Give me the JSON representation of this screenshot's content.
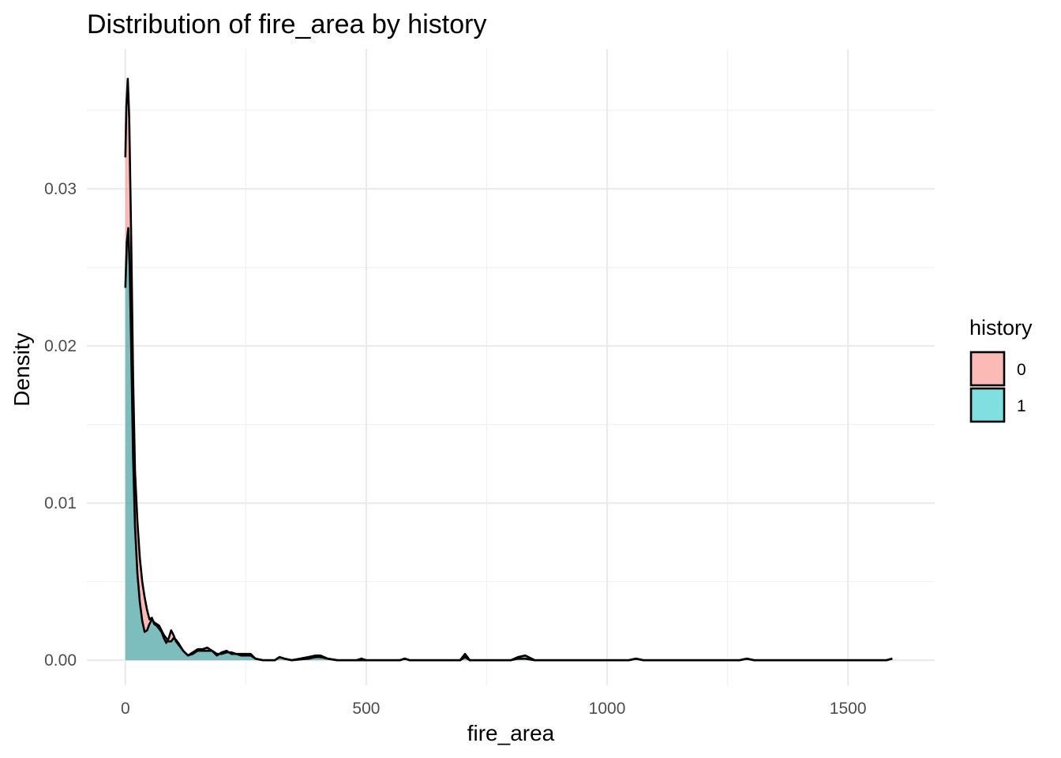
{
  "chart_data": {
    "type": "area",
    "title": "Distribution of fire_area by history",
    "xlabel": "fire_area",
    "ylabel": "Density",
    "xlim": [
      -80,
      1680
    ],
    "ylim": [
      -0.0016,
      0.0389
    ],
    "x_ticks": [
      0,
      500,
      1000,
      1500
    ],
    "x_tick_labels": [
      "0",
      "500",
      "1000",
      "1500"
    ],
    "y_ticks": [
      0.0,
      0.01,
      0.02,
      0.03
    ],
    "y_tick_labels": [
      "0.00",
      "0.01",
      "0.02",
      "0.03"
    ],
    "grid": true,
    "legend": {
      "title": "history",
      "position": "right"
    },
    "series": [
      {
        "name": "0",
        "color": "#F8766D",
        "points": [
          [
            0,
            0.032
          ],
          [
            2,
            0.0352
          ],
          [
            5,
            0.037
          ],
          [
            8,
            0.0345
          ],
          [
            12,
            0.027
          ],
          [
            16,
            0.018
          ],
          [
            20,
            0.012
          ],
          [
            25,
            0.0088
          ],
          [
            30,
            0.0065
          ],
          [
            35,
            0.005
          ],
          [
            40,
            0.004
          ],
          [
            45,
            0.0032
          ],
          [
            50,
            0.0026
          ],
          [
            55,
            0.0027
          ],
          [
            60,
            0.0023
          ],
          [
            65,
            0.0022
          ],
          [
            70,
            0.002
          ],
          [
            75,
            0.0018
          ],
          [
            80,
            0.0014
          ],
          [
            85,
            0.0011
          ],
          [
            90,
            0.0014
          ],
          [
            95,
            0.0019
          ],
          [
            100,
            0.0016
          ],
          [
            105,
            0.0012
          ],
          [
            110,
            0.001
          ],
          [
            120,
            0.0006
          ],
          [
            130,
            0.0003
          ],
          [
            140,
            0.0005
          ],
          [
            150,
            0.0007
          ],
          [
            160,
            0.0007
          ],
          [
            170,
            0.0008
          ],
          [
            180,
            0.0006
          ],
          [
            190,
            0.0003
          ],
          [
            200,
            0.0005
          ],
          [
            210,
            0.0006
          ],
          [
            220,
            0.0004
          ],
          [
            230,
            0.0004
          ],
          [
            240,
            0.0003
          ],
          [
            250,
            0.0003
          ],
          [
            260,
            0.0003
          ],
          [
            270,
            0.0001
          ],
          [
            285,
            0.0
          ],
          [
            310,
            0.0
          ],
          [
            320,
            0.0002
          ],
          [
            330,
            0.0001
          ],
          [
            345,
            0.0
          ],
          [
            380,
            0.0001
          ],
          [
            395,
            0.0002
          ],
          [
            405,
            0.0002
          ],
          [
            420,
            0.0001
          ],
          [
            440,
            0.0
          ],
          [
            480,
            0.0
          ],
          [
            490,
            0.0001
          ],
          [
            500,
            0.0
          ],
          [
            570,
            0.0
          ],
          [
            580,
            0.0001
          ],
          [
            590,
            0.0
          ],
          [
            695,
            0.0
          ],
          [
            705,
            0.0002
          ],
          [
            715,
            0.0
          ],
          [
            800,
            0.0
          ],
          [
            815,
            0.0001
          ],
          [
            830,
            0.0001
          ],
          [
            850,
            0.0
          ],
          [
            1045,
            0.0
          ],
          [
            1060,
            0.0001
          ],
          [
            1075,
            0.0
          ],
          [
            1275,
            0.0
          ],
          [
            1290,
            0.0001
          ],
          [
            1305,
            0.0
          ],
          [
            1580,
            0.0
          ],
          [
            1592,
            0.0001
          ]
        ]
      },
      {
        "name": "1",
        "color": "#00BFC4",
        "points": [
          [
            0,
            0.0237
          ],
          [
            3,
            0.0266
          ],
          [
            6,
            0.0275
          ],
          [
            9,
            0.025
          ],
          [
            12,
            0.02
          ],
          [
            16,
            0.013
          ],
          [
            20,
            0.0085
          ],
          [
            25,
            0.0055
          ],
          [
            30,
            0.0037
          ],
          [
            35,
            0.0025
          ],
          [
            40,
            0.0018
          ],
          [
            45,
            0.0019
          ],
          [
            50,
            0.0023
          ],
          [
            55,
            0.0026
          ],
          [
            60,
            0.0024
          ],
          [
            65,
            0.0023
          ],
          [
            70,
            0.0022
          ],
          [
            75,
            0.0019
          ],
          [
            80,
            0.0016
          ],
          [
            85,
            0.0014
          ],
          [
            90,
            0.0012
          ],
          [
            95,
            0.0012
          ],
          [
            100,
            0.0014
          ],
          [
            105,
            0.0013
          ],
          [
            110,
            0.0011
          ],
          [
            120,
            0.0006
          ],
          [
            130,
            0.0003
          ],
          [
            140,
            0.0004
          ],
          [
            150,
            0.0006
          ],
          [
            160,
            0.0006
          ],
          [
            170,
            0.0006
          ],
          [
            180,
            0.0006
          ],
          [
            190,
            0.0004
          ],
          [
            200,
            0.0004
          ],
          [
            210,
            0.0005
          ],
          [
            220,
            0.0005
          ],
          [
            230,
            0.0004
          ],
          [
            240,
            0.0004
          ],
          [
            250,
            0.0004
          ],
          [
            260,
            0.0004
          ],
          [
            270,
            0.0001
          ],
          [
            285,
            0.0
          ],
          [
            310,
            0.0
          ],
          [
            320,
            0.0002
          ],
          [
            330,
            0.0001
          ],
          [
            345,
            0.0
          ],
          [
            380,
            0.0002
          ],
          [
            395,
            0.0003
          ],
          [
            405,
            0.0003
          ],
          [
            420,
            0.0001
          ],
          [
            440,
            0.0
          ],
          [
            480,
            0.0
          ],
          [
            490,
            0.0
          ],
          [
            500,
            0.0
          ],
          [
            570,
            0.0
          ],
          [
            580,
            0.0001
          ],
          [
            590,
            0.0
          ],
          [
            695,
            0.0
          ],
          [
            705,
            0.0004
          ],
          [
            715,
            0.0
          ],
          [
            800,
            0.0
          ],
          [
            815,
            0.0002
          ],
          [
            830,
            0.0003
          ],
          [
            850,
            0.0
          ],
          [
            1045,
            0.0
          ],
          [
            1060,
            0.0001
          ],
          [
            1075,
            0.0
          ],
          [
            1275,
            0.0
          ],
          [
            1290,
            0.0001
          ],
          [
            1305,
            0.0
          ],
          [
            1580,
            0.0
          ],
          [
            1592,
            0.0001
          ]
        ]
      }
    ]
  }
}
